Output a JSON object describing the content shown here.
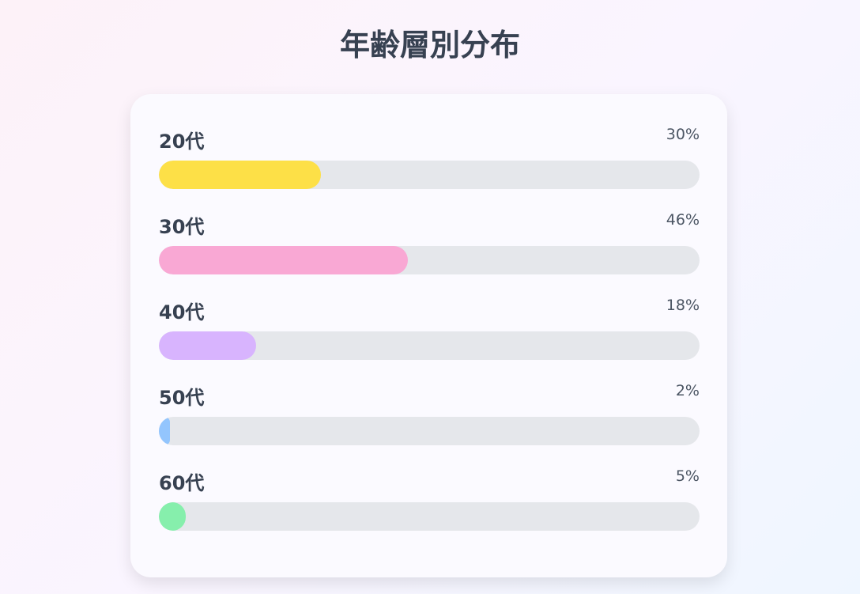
{
  "title": "年齢層別分布",
  "chart_data": {
    "type": "bar",
    "orientation": "horizontal",
    "categories": [
      "20代",
      "30代",
      "40代",
      "50代",
      "60代"
    ],
    "values": [
      30,
      46,
      18,
      2,
      5
    ],
    "value_labels": [
      "30%",
      "46%",
      "18%",
      "2%",
      "5%"
    ],
    "unit": "%",
    "xlim": [
      0,
      100
    ],
    "colors": [
      "#fde047",
      "#f9a8d4",
      "#d8b4fe",
      "#93c5fd",
      "#86efac"
    ],
    "track_color": "#e5e7eb"
  }
}
